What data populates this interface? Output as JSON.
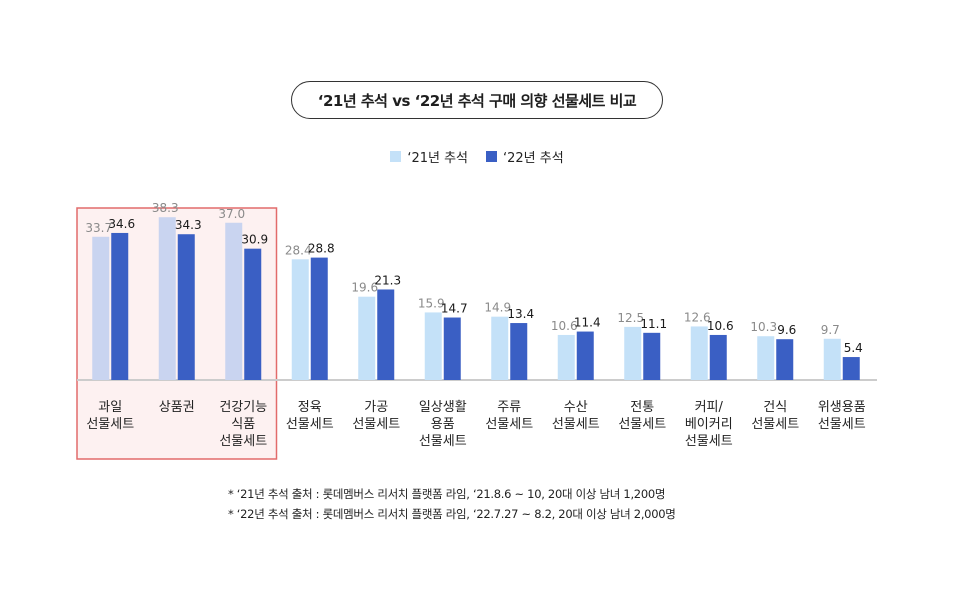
{
  "title": "‘21년 추석 vs ‘22년 추석 구매 의향 선물세트 비교",
  "colors": {
    "y2021": "#c4e1f8",
    "y2021_highlight": "#c9d4f0",
    "y2022": "#3a5fc4",
    "highlight_fill": "#fdf1f1",
    "highlight_border": "#e26b6b",
    "label_2021": "#8a8a8a",
    "label_2022": "#1a1a1a"
  },
  "chart_data": {
    "type": "bar",
    "categories": [
      [
        "과일",
        "선물세트"
      ],
      [
        "상품권"
      ],
      [
        "건강기능",
        "식품",
        "선물세트"
      ],
      [
        "정육",
        "선물세트"
      ],
      [
        "가공",
        "선물세트"
      ],
      [
        "일상생활",
        "용품",
        "선물세트"
      ],
      [
        "주류",
        "선물세트"
      ],
      [
        "수산",
        "선물세트"
      ],
      [
        "전통",
        "선물세트"
      ],
      [
        "커피/",
        "베이커리",
        "선물세트"
      ],
      [
        "건식",
        "선물세트"
      ],
      [
        "위생용품",
        "선물세트"
      ]
    ],
    "series": [
      {
        "name": "‘21년 추석",
        "values": [
          33.7,
          38.3,
          37.0,
          28.4,
          19.6,
          15.9,
          14.9,
          10.6,
          12.5,
          12.6,
          10.3,
          9.7
        ]
      },
      {
        "name": "‘22년 추석",
        "values": [
          34.6,
          34.3,
          30.9,
          28.8,
          21.3,
          14.7,
          13.4,
          11.4,
          11.1,
          10.6,
          9.6,
          5.4
        ]
      }
    ],
    "value_labels": [
      [
        "33.7",
        "38.3",
        "37.0",
        "28.4",
        "19.6",
        "15.9",
        "14.9",
        "10.6",
        "12.5",
        "12.6",
        "10.3",
        "9.7"
      ],
      [
        "34.6",
        "34.3",
        "30.9",
        "28.8",
        "21.3",
        "14.7",
        "13.4",
        "11.4",
        "11.1",
        "10.6",
        "9.6",
        "5.4"
      ]
    ],
    "highlighted_categories": [
      0,
      1,
      2
    ],
    "ylim": [
      0,
      40
    ],
    "legend_position": "top-center",
    "grid": false
  },
  "notes": [
    "* ‘21년 추석 출처 : 롯데멤버스 리서치 플랫폼 라임, ‘21.8.6 ~ 10, 20대 이상 남녀 1,200명",
    "* ‘22년 추석 출처 : 롯데멤버스 리서치 플랫폼 라임, ‘22.7.27 ~ 8.2, 20대 이상 남녀 2,000명"
  ]
}
